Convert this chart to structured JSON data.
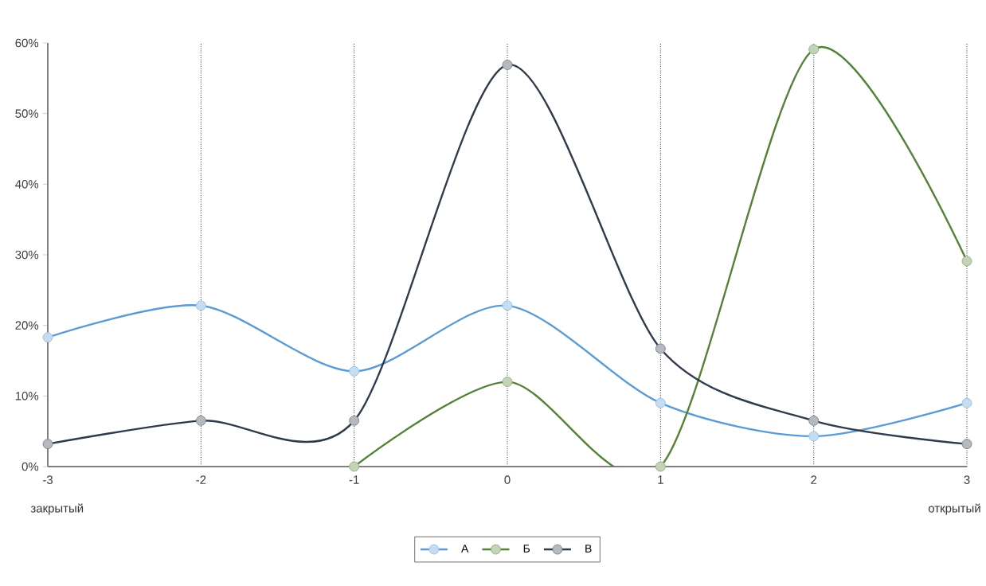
{
  "chart_data": {
    "type": "line",
    "x": [
      -3,
      -2,
      -1,
      0,
      1,
      2,
      3
    ],
    "series": [
      {
        "name": "А",
        "color": "#5b9bd5",
        "values": [
          18.3,
          22.8,
          13.5,
          22.8,
          9.0,
          4.3,
          9.0
        ]
      },
      {
        "name": "Б",
        "color": "#538135",
        "values": [
          null,
          null,
          0,
          12,
          0,
          59.1,
          29.1
        ]
      },
      {
        "name": "В",
        "color": "#2f3b4c",
        "values": [
          3.2,
          6.5,
          6.5,
          56.9,
          16.7,
          6.5,
          3.2
        ]
      }
    ],
    "xlim": [
      -3,
      3
    ],
    "xticks": [
      -3,
      -2,
      -1,
      0,
      1,
      2,
      3
    ],
    "ylim": [
      0,
      60
    ],
    "yticks": [
      {
        "value": 0,
        "label": "0%"
      },
      {
        "value": 10,
        "label": "10%"
      },
      {
        "value": 20,
        "label": "20%"
      },
      {
        "value": 30,
        "label": "30%"
      },
      {
        "value": 40,
        "label": "40%"
      },
      {
        "value": 50,
        "label": "50%"
      },
      {
        "value": 60,
        "label": "60%"
      }
    ],
    "annotations": [
      "закрытый",
      "открытый"
    ],
    "grid": "x",
    "legend": "bottom",
    "marker": "circle",
    "line_style": "solid"
  }
}
